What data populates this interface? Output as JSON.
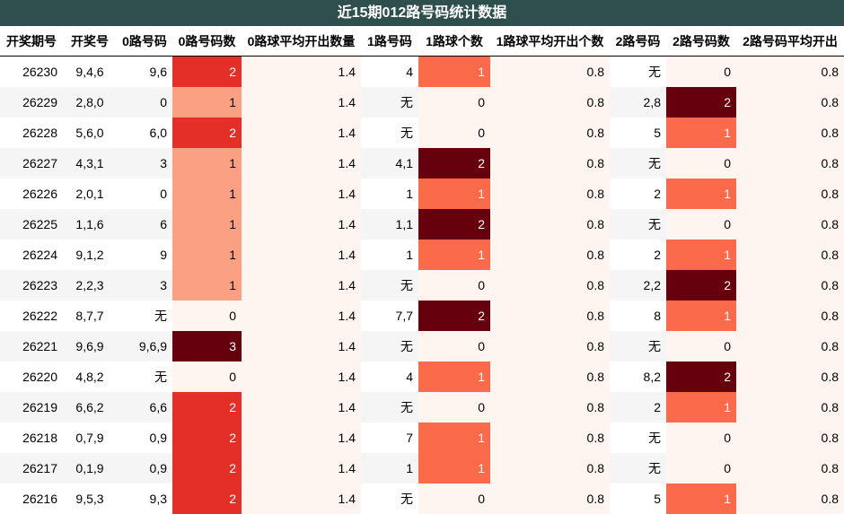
{
  "title": "近15期012路号码统计数据",
  "headers": [
    "开奖期号",
    "开奖号",
    "0路号码",
    "0路号码数",
    "0路球平均开出数量",
    "1路号码",
    "1路球个数",
    "1路球平均开出个数",
    "2路号码",
    "2路号码数",
    "2路号码平均开出"
  ],
  "rows": [
    [
      "26230",
      "9,4,6",
      "9,6",
      "2",
      "1.4",
      "4",
      "1",
      "0.8",
      "无",
      "0",
      "0.8"
    ],
    [
      "26229",
      "2,8,0",
      "0",
      "1",
      "1.4",
      "无",
      "0",
      "0.8",
      "2,8",
      "2",
      "0.8"
    ],
    [
      "26228",
      "5,6,0",
      "6,0",
      "2",
      "1.4",
      "无",
      "0",
      "0.8",
      "5",
      "1",
      "0.8"
    ],
    [
      "26227",
      "4,3,1",
      "3",
      "1",
      "1.4",
      "4,1",
      "2",
      "0.8",
      "无",
      "0",
      "0.8"
    ],
    [
      "26226",
      "2,0,1",
      "0",
      "1",
      "1.4",
      "1",
      "1",
      "0.8",
      "2",
      "1",
      "0.8"
    ],
    [
      "26225",
      "1,1,6",
      "6",
      "1",
      "1.4",
      "1,1",
      "2",
      "0.8",
      "无",
      "0",
      "0.8"
    ],
    [
      "26224",
      "9,1,2",
      "9",
      "1",
      "1.4",
      "1",
      "1",
      "0.8",
      "2",
      "1",
      "0.8"
    ],
    [
      "26223",
      "2,2,3",
      "3",
      "1",
      "1.4",
      "无",
      "0",
      "0.8",
      "2,2",
      "2",
      "0.8"
    ],
    [
      "26222",
      "8,7,7",
      "无",
      "0",
      "1.4",
      "7,7",
      "2",
      "0.8",
      "8",
      "1",
      "0.8"
    ],
    [
      "26221",
      "9,6,9",
      "9,6,9",
      "3",
      "1.4",
      "无",
      "0",
      "0.8",
      "无",
      "0",
      "0.8"
    ],
    [
      "26220",
      "4,8,2",
      "无",
      "0",
      "1.4",
      "4",
      "1",
      "0.8",
      "8,2",
      "2",
      "0.8"
    ],
    [
      "26219",
      "6,6,2",
      "6,6",
      "2",
      "1.4",
      "无",
      "0",
      "0.8",
      "2",
      "1",
      "0.8"
    ],
    [
      "26218",
      "0,7,9",
      "0,9",
      "2",
      "1.4",
      "7",
      "1",
      "0.8",
      "无",
      "0",
      "0.8"
    ],
    [
      "26217",
      "0,1,9",
      "0,9",
      "2",
      "1.4",
      "1",
      "1",
      "0.8",
      "无",
      "0",
      "0.8"
    ],
    [
      "26216",
      "9,5,3",
      "9,3",
      "2",
      "1.4",
      "无",
      "0",
      "0.8",
      "5",
      "1",
      "0.8"
    ]
  ],
  "colors": {
    "title_bg": "#2f4f4f",
    "count_0": "#fff5f0",
    "count_1_zero_route": "#fca083",
    "count_1_other_routes": "#fb6a4a",
    "count_2_zero_route": "#e32f27",
    "count_2_other_routes": "#67000d",
    "count_3_zero_route": "#67000d",
    "avg_bg": "#fff5f0"
  }
}
